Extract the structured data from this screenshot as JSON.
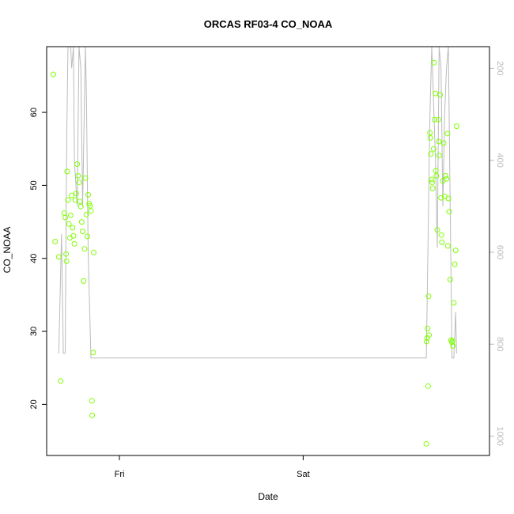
{
  "chart_data": {
    "type": "scatter",
    "title": "ORCAS RF03-4 CO_NOAA",
    "xlabel": "Date",
    "ylabel": "CO_NOAA",
    "x_unit": "days since Thu 00:00",
    "xlim": [
      0.604,
      3.014
    ],
    "ylim": [
      13,
      69
    ],
    "x_ticks": [
      {
        "value": 1,
        "label": "Fri"
      },
      {
        "value": 2,
        "label": "Sat"
      }
    ],
    "y_ticks": [
      20,
      30,
      40,
      50,
      60
    ],
    "y2_ticks": [
      200,
      400,
      600,
      800,
      1000
    ],
    "y2lim": [
      1042,
      153
    ],
    "colors": {
      "points": "#7fff00",
      "line": "#bbbbbb",
      "right_axis": "#bbbbbb"
    },
    "series": [
      {
        "type": "scatter",
        "points": [
          [
            0.64,
            65.2
          ],
          [
            0.65,
            42.3
          ],
          [
            0.67,
            40.2
          ],
          [
            0.68,
            23.2
          ],
          [
            0.7,
            46.2
          ],
          [
            0.705,
            45.6
          ],
          [
            0.71,
            40.6
          ],
          [
            0.712,
            39.6
          ],
          [
            0.715,
            51.9
          ],
          [
            0.72,
            48.0
          ],
          [
            0.725,
            44.7
          ],
          [
            0.73,
            42.8
          ],
          [
            0.735,
            45.9
          ],
          [
            0.74,
            48.6
          ],
          [
            0.745,
            44.2
          ],
          [
            0.75,
            43.1
          ],
          [
            0.755,
            42.0
          ],
          [
            0.76,
            48.0
          ],
          [
            0.765,
            48.9
          ],
          [
            0.77,
            52.9
          ],
          [
            0.775,
            51.3
          ],
          [
            0.78,
            50.4
          ],
          [
            0.785,
            47.8
          ],
          [
            0.79,
            47.1
          ],
          [
            0.795,
            45.0
          ],
          [
            0.8,
            43.7
          ],
          [
            0.805,
            36.9
          ],
          [
            0.81,
            41.3
          ],
          [
            0.815,
            51.0
          ],
          [
            0.82,
            46.0
          ],
          [
            0.825,
            43.0
          ],
          [
            0.83,
            48.7
          ],
          [
            0.835,
            47.5
          ],
          [
            0.84,
            47.2
          ],
          [
            0.845,
            46.5
          ],
          [
            0.85,
            20.5
          ],
          [
            0.852,
            18.5
          ],
          [
            0.857,
            27.1
          ],
          [
            0.86,
            40.8
          ],
          [
            2.67,
            14.6
          ],
          [
            2.672,
            28.6
          ],
          [
            2.675,
            29.1
          ],
          [
            2.677,
            30.4
          ],
          [
            2.68,
            22.5
          ],
          [
            2.682,
            34.8
          ],
          [
            2.685,
            29.5
          ],
          [
            2.69,
            57.2
          ],
          [
            2.692,
            56.5
          ],
          [
            2.695,
            54.3
          ],
          [
            2.7,
            50.8
          ],
          [
            2.702,
            50.4
          ],
          [
            2.705,
            49.6
          ],
          [
            2.71,
            55.0
          ],
          [
            2.712,
            66.8
          ],
          [
            2.715,
            59.0
          ],
          [
            2.72,
            62.6
          ],
          [
            2.722,
            52.0
          ],
          [
            2.725,
            51.3
          ],
          [
            2.73,
            43.9
          ],
          [
            2.735,
            59.0
          ],
          [
            2.738,
            56.0
          ],
          [
            2.74,
            54.1
          ],
          [
            2.745,
            62.4
          ],
          [
            2.75,
            48.3
          ],
          [
            2.752,
            43.2
          ],
          [
            2.755,
            42.2
          ],
          [
            2.76,
            50.6
          ],
          [
            2.765,
            55.8
          ],
          [
            2.77,
            48.5
          ],
          [
            2.775,
            51.3
          ],
          [
            2.78,
            50.9
          ],
          [
            2.785,
            57.1
          ],
          [
            2.787,
            41.7
          ],
          [
            2.79,
            48.2
          ],
          [
            2.795,
            46.4
          ],
          [
            2.8,
            37.1
          ],
          [
            2.805,
            28.8
          ],
          [
            2.81,
            28.5
          ],
          [
            2.812,
            28.7
          ],
          [
            2.815,
            28.0
          ],
          [
            2.82,
            33.9
          ],
          [
            2.825,
            39.2
          ],
          [
            2.83,
            41.1
          ],
          [
            2.835,
            58.1
          ]
        ]
      },
      {
        "type": "line",
        "axis": "right",
        "name": "",
        "points": [
          [
            0.67,
            820
          ],
          [
            0.685,
            560
          ],
          [
            0.695,
            820
          ],
          [
            0.705,
            820
          ],
          [
            0.71,
            500
          ],
          [
            0.715,
            300
          ],
          [
            0.72,
            100
          ],
          [
            0.735,
            100
          ],
          [
            0.74,
            200
          ],
          [
            0.75,
            100
          ],
          [
            0.755,
            400
          ],
          [
            0.77,
            500
          ],
          [
            0.78,
            100
          ],
          [
            0.79,
            200
          ],
          [
            0.8,
            500
          ],
          [
            0.815,
            100
          ],
          [
            0.82,
            250
          ],
          [
            0.83,
            600
          ],
          [
            0.845,
            830
          ],
          [
            2.67,
            830
          ],
          [
            2.69,
            300
          ],
          [
            2.7,
            100
          ],
          [
            2.72,
            400
          ],
          [
            2.73,
            590
          ],
          [
            2.74,
            100
          ],
          [
            2.75,
            200
          ],
          [
            2.76,
            500
          ],
          [
            2.77,
            300
          ],
          [
            2.78,
            200
          ],
          [
            2.79,
            100
          ],
          [
            2.8,
            500
          ],
          [
            2.81,
            830
          ],
          [
            2.82,
            830
          ],
          [
            2.83,
            730
          ],
          [
            2.835,
            820
          ]
        ]
      }
    ]
  }
}
